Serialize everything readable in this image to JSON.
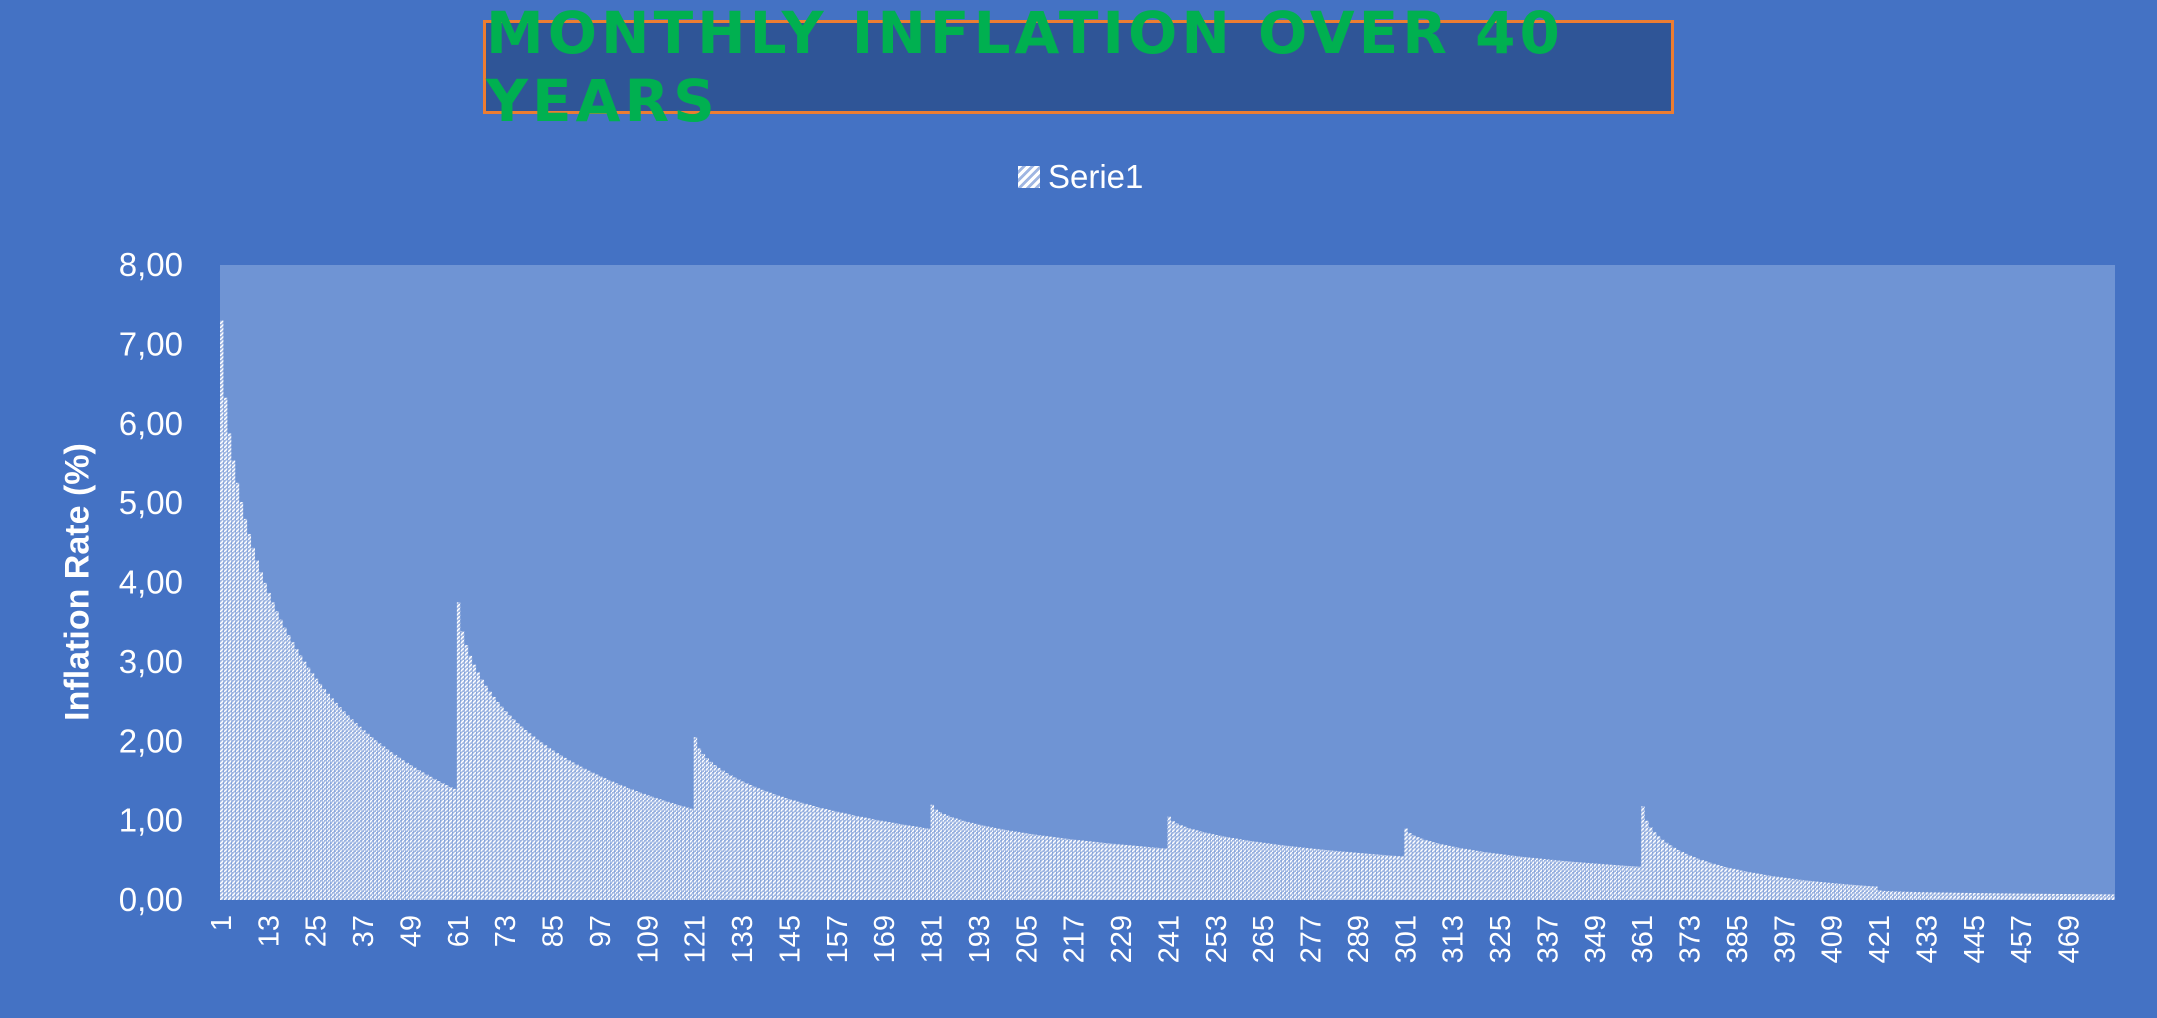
{
  "chart_data": {
    "type": "bar",
    "title": "MONTHLY INFLATION OVER 40 YEARS",
    "ylabel": "Inflation Rate (%)",
    "xlabel": "",
    "ylim": [
      0,
      8
    ],
    "y_ticks": [
      "0,00",
      "1,00",
      "2,00",
      "3,00",
      "4,00",
      "5,00",
      "6,00",
      "7,00",
      "8,00"
    ],
    "x_tick_labels": [
      "1",
      "13",
      "25",
      "37",
      "49",
      "61",
      "73",
      "85",
      "97",
      "109",
      "121",
      "133",
      "145",
      "157",
      "169",
      "181",
      "193",
      "205",
      "217",
      "229",
      "241",
      "253",
      "265",
      "277",
      "289",
      "301",
      "313",
      "325",
      "337",
      "349",
      "361",
      "373",
      "385",
      "397",
      "409",
      "421",
      "433",
      "445",
      "457",
      "469"
    ],
    "x_count": 480,
    "legend_position": "top",
    "grid": false,
    "colors": {
      "background": "#4472c4",
      "plot_area": "#6f94d4",
      "bar_fill": "#e6ecf7",
      "title_text": "#00b050",
      "title_box": "#2f5597",
      "title_border": "#ed7d31"
    },
    "series": [
      {
        "name": "Serie1",
        "segments": [
          {
            "from": 1,
            "to": 60,
            "start": 7.3,
            "end": 1.4
          },
          {
            "from": 61,
            "to": 120,
            "start": 3.75,
            "end": 1.15
          },
          {
            "from": 121,
            "to": 180,
            "start": 2.05,
            "end": 0.9
          },
          {
            "from": 181,
            "to": 240,
            "start": 1.2,
            "end": 0.65
          },
          {
            "from": 241,
            "to": 300,
            "start": 1.05,
            "end": 0.55
          },
          {
            "from": 301,
            "to": 360,
            "start": 0.9,
            "end": 0.42
          },
          {
            "from": 361,
            "to": 420,
            "start": 1.18,
            "end": 0.17
          },
          {
            "from": 421,
            "to": 480,
            "start": 0.12,
            "end": 0.07
          }
        ]
      }
    ]
  }
}
